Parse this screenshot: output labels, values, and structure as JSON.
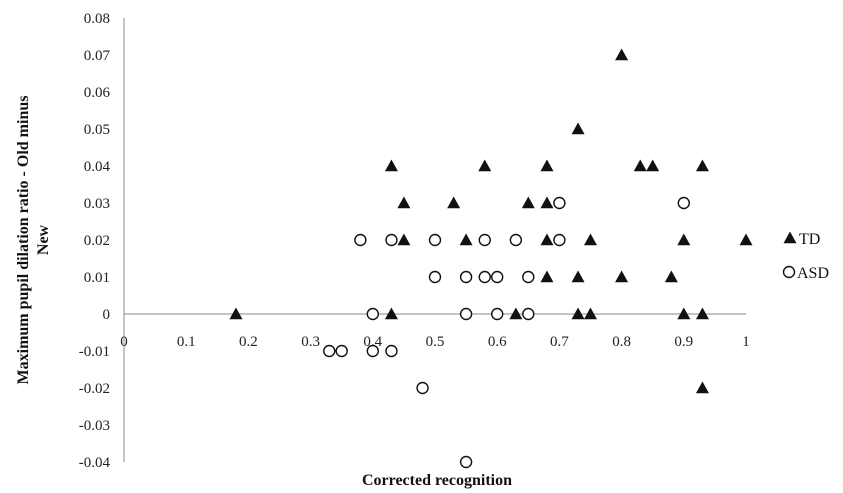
{
  "chart_data": {
    "type": "scatter",
    "title": "",
    "xlabel": "Corrected recognition",
    "ylabel_line1": "Maximum pupil dilation ratio - Old minus",
    "ylabel_line2": "New",
    "xlim": [
      0,
      1
    ],
    "ylim": [
      -0.04,
      0.08
    ],
    "x_ticks": [
      "0",
      "0.1",
      "0.2",
      "0.3",
      "0.4",
      "0.5",
      "0.6",
      "0.7",
      "0.8",
      "0.9",
      "1"
    ],
    "y_ticks": [
      "0.08",
      "0.07",
      "0.06",
      "0.05",
      "0.04",
      "0.03",
      "0.02",
      "0.01",
      "0",
      "-0.01",
      "-0.02",
      "-0.03",
      "-0.04"
    ],
    "grid": false,
    "legend_position": "right",
    "series": [
      {
        "name": "TD",
        "marker": "filled-triangle",
        "color": "#111111",
        "points": [
          [
            0.18,
            0
          ],
          [
            0.43,
            0.04
          ],
          [
            0.43,
            0
          ],
          [
            0.45,
            0.03
          ],
          [
            0.45,
            0.02
          ],
          [
            0.53,
            0.03
          ],
          [
            0.55,
            0.02
          ],
          [
            0.58,
            0.04
          ],
          [
            0.63,
            0
          ],
          [
            0.65,
            0.03
          ],
          [
            0.68,
            0.04
          ],
          [
            0.68,
            0.03
          ],
          [
            0.68,
            0.02
          ],
          [
            0.68,
            0.01
          ],
          [
            0.73,
            0.05
          ],
          [
            0.73,
            0.01
          ],
          [
            0.73,
            0
          ],
          [
            0.75,
            0.02
          ],
          [
            0.75,
            0
          ],
          [
            0.8,
            0.07
          ],
          [
            0.8,
            0.01
          ],
          [
            0.83,
            0.04
          ],
          [
            0.85,
            0.04
          ],
          [
            0.88,
            0.01
          ],
          [
            0.9,
            0.02
          ],
          [
            0.9,
            0
          ],
          [
            0.93,
            0.04
          ],
          [
            0.93,
            0
          ],
          [
            0.93,
            -0.02
          ],
          [
            1.0,
            0.02
          ]
        ]
      },
      {
        "name": "ASD",
        "marker": "open-circle",
        "color": "#111111",
        "points": [
          [
            0.33,
            -0.01
          ],
          [
            0.35,
            -0.01
          ],
          [
            0.38,
            0.02
          ],
          [
            0.4,
            0
          ],
          [
            0.4,
            -0.01
          ],
          [
            0.43,
            0.02
          ],
          [
            0.43,
            -0.01
          ],
          [
            0.48,
            -0.02
          ],
          [
            0.5,
            0.02
          ],
          [
            0.5,
            0.01
          ],
          [
            0.55,
            0.01
          ],
          [
            0.55,
            0
          ],
          [
            0.55,
            -0.04
          ],
          [
            0.58,
            0.02
          ],
          [
            0.58,
            0.01
          ],
          [
            0.6,
            0.01
          ],
          [
            0.6,
            0
          ],
          [
            0.63,
            0.02
          ],
          [
            0.65,
            0.01
          ],
          [
            0.65,
            0
          ],
          [
            0.7,
            0.03
          ],
          [
            0.7,
            0.02
          ],
          [
            0.9,
            0.03
          ]
        ]
      }
    ]
  }
}
